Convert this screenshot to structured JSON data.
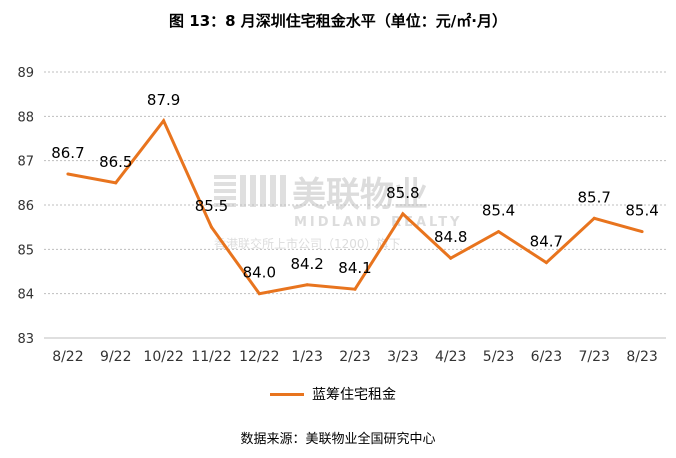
{
  "chart_data": {
    "type": "line",
    "title": "图 13：8 月深圳住宅租金水平（单位：元/㎡·月）",
    "categories": [
      "8/22",
      "9/22",
      "10/22",
      "11/22",
      "12/22",
      "1/23",
      "2/23",
      "3/23",
      "4/23",
      "5/23",
      "6/23",
      "7/23",
      "8/23"
    ],
    "series": [
      {
        "name": "蓝筹住宅租金",
        "color": "#E8741E",
        "values": [
          86.7,
          86.5,
          87.9,
          85.5,
          84.0,
          84.2,
          84.1,
          85.8,
          84.8,
          85.4,
          84.7,
          85.7,
          85.4
        ],
        "labels": [
          "86.7",
          "86.5",
          "87.9",
          "85.5",
          "84.0",
          "84.2",
          "84.1",
          "85.8",
          "84.8",
          "85.4",
          "84.7",
          "85.7",
          "85.4"
        ]
      }
    ],
    "y_ticks": [
      "83",
      "84",
      "85",
      "86",
      "87",
      "88",
      "89"
    ],
    "ylim": [
      83,
      89
    ],
    "grid": "horizontal dashed",
    "legend_position": "bottom"
  },
  "watermark": {
    "brand": "美联物业",
    "brand_en": "MIDLAND REALTY",
    "tagline": "香港联交所上市公司（1200）旗下"
  },
  "source": "数据来源：美联物业全国研究中心"
}
